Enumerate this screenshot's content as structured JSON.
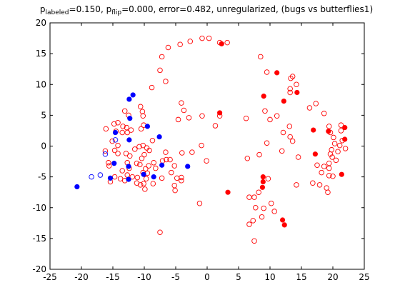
{
  "chart_data": {
    "type": "scatter",
    "title": {
      "parts": [
        {
          "text": "p",
          "sub": false
        },
        {
          "text": "labeled",
          "sub": true
        },
        {
          "text": "=0.150, p",
          "sub": false
        },
        {
          "text": "flip",
          "sub": true
        },
        {
          "text": "=0.000, error=0.482, unregularized, (bugs vs butterflies1)",
          "sub": false
        }
      ]
    },
    "xlim": [
      -25,
      25
    ],
    "ylim": [
      -20,
      20
    ],
    "xticks": [
      "-25",
      "-20",
      "-15",
      "-10",
      "-5",
      "0",
      "5",
      "10",
      "15",
      "20",
      "25"
    ],
    "yticks": [
      "-20",
      "-15",
      "-10",
      "-5",
      "0",
      "5",
      "10",
      "15",
      "20"
    ],
    "grid": false,
    "colors": {
      "red": "#ff0000",
      "blue": "#0000ff",
      "axis": "#000000"
    },
    "series": [
      {
        "color": "#ff0000",
        "filled": false,
        "points": [
          [
            2.0,
            16.8
          ],
          [
            3.2,
            16.8
          ],
          [
            0.3,
            17.5
          ],
          [
            -0.8,
            17.5
          ],
          [
            -2.7,
            17.0
          ],
          [
            -4.3,
            16.5
          ],
          [
            -6.2,
            16.0
          ],
          [
            -7.2,
            14.5
          ],
          [
            -7.5,
            12.3
          ],
          [
            -8.8,
            9.5
          ],
          [
            -6.6,
            10.5
          ],
          [
            8.5,
            14.5
          ],
          [
            9.5,
            12.0
          ],
          [
            13.3,
            11.0
          ],
          [
            13.6,
            11.3
          ],
          [
            14.2,
            10.0
          ],
          [
            13.2,
            9.3
          ],
          [
            13.2,
            8.7
          ],
          [
            16.3,
            6.2
          ],
          [
            17.3,
            6.9
          ],
          [
            18.6,
            5.3
          ],
          [
            19.4,
            3.2
          ],
          [
            19.6,
            2.2
          ],
          [
            20.1,
            1.4
          ],
          [
            21.3,
            3.4
          ],
          [
            21.3,
            2.5
          ],
          [
            20.3,
            0.4
          ],
          [
            21.1,
            0.1
          ],
          [
            22.0,
            -0.4
          ],
          [
            21.5,
            0.9
          ],
          [
            20.8,
            -0.9
          ],
          [
            19.8,
            -0.6
          ],
          [
            19.6,
            -1.3
          ],
          [
            19.9,
            -1.8
          ],
          [
            20.5,
            -2.3
          ],
          [
            19.4,
            -2.8
          ],
          [
            19.4,
            -3.6
          ],
          [
            17.5,
            -3.1
          ],
          [
            18.6,
            -3.3
          ],
          [
            18.2,
            -4.3
          ],
          [
            19.4,
            -4.8
          ],
          [
            20.0,
            -4.9
          ],
          [
            19.0,
            -6.8
          ],
          [
            19.2,
            -7.5
          ],
          [
            17.9,
            -6.3
          ],
          [
            16.8,
            -6.0
          ],
          [
            14.2,
            -6.3
          ],
          [
            14.5,
            -1.8
          ],
          [
            13.6,
            0.8
          ],
          [
            13.2,
            1.5
          ],
          [
            13.1,
            3.2
          ],
          [
            12.1,
            2.2
          ],
          [
            11.9,
            -0.8
          ],
          [
            10.0,
            4.3
          ],
          [
            11.1,
            4.9
          ],
          [
            9.2,
            5.7
          ],
          [
            9.5,
            0.5
          ],
          [
            8.3,
            -1.4
          ],
          [
            6.2,
            4.5
          ],
          [
            6.4,
            -2.0
          ],
          [
            2.0,
            4.9
          ],
          [
            1.3,
            3.3
          ],
          [
            -0.8,
            4.9
          ],
          [
            -4.1,
            7.0
          ],
          [
            -3.7,
            5.8
          ],
          [
            -4.6,
            4.3
          ],
          [
            -2.9,
            4.6
          ],
          [
            -10.3,
            5.6
          ],
          [
            -10.6,
            6.4
          ],
          [
            -10.2,
            4.9
          ],
          [
            -10.1,
            3.4
          ],
          [
            -10.5,
            2.8
          ],
          [
            -13.1,
            5.7
          ],
          [
            -12.5,
            5.0
          ],
          [
            -14.2,
            3.8
          ],
          [
            -13.4,
            3.2
          ],
          [
            -12.8,
            3.0
          ],
          [
            -12.1,
            2.6
          ],
          [
            -12.7,
            2.2
          ],
          [
            -13.5,
            2.2
          ],
          [
            -14.5,
            2.4
          ],
          [
            -14.8,
            3.6
          ],
          [
            -16.1,
            2.8
          ],
          [
            -15.1,
            0.8
          ],
          [
            -14.2,
            0.1
          ],
          [
            -14.7,
            -0.7
          ],
          [
            -16.2,
            -0.8
          ],
          [
            -15.7,
            -2.7
          ],
          [
            -15.6,
            -3.2
          ],
          [
            -14.2,
            -1.2
          ],
          [
            -12.9,
            -1.2
          ],
          [
            -12.3,
            -1.6
          ],
          [
            -11.5,
            -0.5
          ],
          [
            -10.8,
            -0.1
          ],
          [
            -10.2,
            0.1
          ],
          [
            -9.6,
            -0.3
          ],
          [
            -8.7,
            0.9
          ],
          [
            -9.2,
            -0.7
          ],
          [
            -10.0,
            -1.4
          ],
          [
            -10.4,
            -2.0
          ],
          [
            -8.5,
            -2.7
          ],
          [
            -9.3,
            -3.2
          ],
          [
            -8.2,
            -3.6
          ],
          [
            -7.1,
            -2.4
          ],
          [
            -6.6,
            -1.0
          ],
          [
            -5.9,
            -2.2
          ],
          [
            -5.2,
            -3.2
          ],
          [
            -5.7,
            -4.3
          ],
          [
            -4.8,
            -5.2
          ],
          [
            -4.1,
            -5.1
          ],
          [
            -4.1,
            -5.6
          ],
          [
            -5.2,
            -6.4
          ],
          [
            -5.1,
            -7.2
          ],
          [
            -6.5,
            -2.2
          ],
          [
            -4.0,
            -1.1
          ],
          [
            -2.4,
            -1.0
          ],
          [
            -0.9,
            0.1
          ],
          [
            -0.1,
            -2.4
          ],
          [
            -7.2,
            -5.2
          ],
          [
            -9.8,
            -3.7
          ],
          [
            -10.7,
            -3.0
          ],
          [
            -11.2,
            -2.8
          ],
          [
            -12.7,
            -2.7
          ],
          [
            -12.4,
            -3.6
          ],
          [
            -13.5,
            -4.0
          ],
          [
            -12.7,
            -4.7
          ],
          [
            -11.9,
            -5.0
          ],
          [
            -11.1,
            -5.1
          ],
          [
            -11.2,
            -6.0
          ],
          [
            -10.6,
            -6.3
          ],
          [
            -10.1,
            -6.1
          ],
          [
            -9.7,
            -5.3
          ],
          [
            -9.9,
            -7.0
          ],
          [
            -8.6,
            -6.1
          ],
          [
            -9.5,
            -4.4
          ],
          [
            -10.2,
            -4.3
          ],
          [
            -13.1,
            -5.6
          ],
          [
            -13.8,
            -5.3
          ],
          [
            -14.7,
            -5.0
          ],
          [
            -15.4,
            -5.8
          ],
          [
            -7.5,
            -14.0
          ],
          [
            -1.2,
            -9.3
          ],
          [
            6.7,
            -8.3
          ],
          [
            7.5,
            -8.3
          ],
          [
            8.2,
            -7.5
          ],
          [
            7.7,
            -10.0
          ],
          [
            9.0,
            -10.1
          ],
          [
            10.2,
            -9.3
          ],
          [
            10.7,
            -10.6
          ],
          [
            8.7,
            -11.5
          ],
          [
            6.7,
            -12.7
          ],
          [
            7.3,
            -12.1
          ],
          [
            7.5,
            -15.4
          ],
          [
            9.7,
            -5.3
          ]
        ]
      },
      {
        "color": "#ff0000",
        "filled": true,
        "points": [
          [
            2.3,
            16.6
          ],
          [
            11.1,
            11.9
          ],
          [
            14.3,
            8.7
          ],
          [
            9.0,
            8.1
          ],
          [
            12.2,
            7.3
          ],
          [
            2.0,
            5.4
          ],
          [
            16.9,
            2.6
          ],
          [
            19.3,
            2.4
          ],
          [
            21.9,
            3.0
          ],
          [
            21.9,
            1.1
          ],
          [
            17.2,
            -1.3
          ],
          [
            21.4,
            -4.6
          ],
          [
            8.9,
            -5.0
          ],
          [
            8.9,
            -5.8
          ],
          [
            3.3,
            -7.5
          ],
          [
            8.8,
            -6.7
          ],
          [
            12.0,
            -12.0
          ],
          [
            12.3,
            -12.8
          ]
        ]
      },
      {
        "color": "#0000ff",
        "filled": false,
        "points": [
          [
            -14.6,
            1.0
          ],
          [
            -16.2,
            -1.3
          ],
          [
            -17.0,
            -4.7
          ],
          [
            -18.4,
            -5.0
          ]
        ]
      },
      {
        "color": "#0000ff",
        "filled": true,
        "points": [
          [
            -11.8,
            8.3
          ],
          [
            -12.4,
            7.6
          ],
          [
            -12.3,
            4.5
          ],
          [
            -9.5,
            3.2
          ],
          [
            -14.6,
            2.2
          ],
          [
            -12.4,
            1.0
          ],
          [
            -7.6,
            1.5
          ],
          [
            -14.8,
            -2.8
          ],
          [
            -12.5,
            -3.3
          ],
          [
            -7.2,
            -3.1
          ],
          [
            -3.1,
            -3.3
          ],
          [
            -10.1,
            -4.6
          ],
          [
            -8.5,
            -5.0
          ],
          [
            -12.5,
            -5.4
          ],
          [
            -15.4,
            -5.2
          ],
          [
            -20.7,
            -6.6
          ]
        ]
      }
    ]
  }
}
